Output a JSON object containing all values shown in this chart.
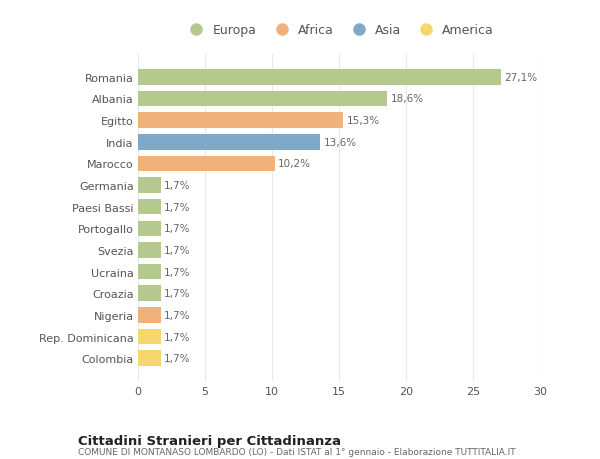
{
  "categories": [
    "Romania",
    "Albania",
    "Egitto",
    "India",
    "Marocco",
    "Germania",
    "Paesi Bassi",
    "Portogallo",
    "Svezia",
    "Ucraina",
    "Croazia",
    "Nigeria",
    "Rep. Dominicana",
    "Colombia"
  ],
  "values": [
    27.1,
    18.6,
    15.3,
    13.6,
    10.2,
    1.7,
    1.7,
    1.7,
    1.7,
    1.7,
    1.7,
    1.7,
    1.7,
    1.7
  ],
  "labels": [
    "27,1%",
    "18,6%",
    "15,3%",
    "13,6%",
    "10,2%",
    "1,7%",
    "1,7%",
    "1,7%",
    "1,7%",
    "1,7%",
    "1,7%",
    "1,7%",
    "1,7%",
    "1,7%"
  ],
  "colors": [
    "#b5c98e",
    "#b5c98e",
    "#f0b27a",
    "#7fa8c9",
    "#f0b27a",
    "#b5c98e",
    "#b5c98e",
    "#b5c98e",
    "#b5c98e",
    "#b5c98e",
    "#b5c98e",
    "#f0b27a",
    "#f5d76e",
    "#f5d76e"
  ],
  "legend_labels": [
    "Europa",
    "Africa",
    "Asia",
    "America"
  ],
  "legend_colors": [
    "#b5c98e",
    "#f0b27a",
    "#7fa8c9",
    "#f5d76e"
  ],
  "title": "Cittadini Stranieri per Cittadinanza",
  "subtitle": "COMUNE DI MONTANASO LOMBARDO (LO) - Dati ISTAT al 1° gennaio - Elaborazione TUTTITALIA.IT",
  "xlim": [
    0,
    30
  ],
  "xticks": [
    0,
    5,
    10,
    15,
    20,
    25,
    30
  ],
  "bg_color": "#ffffff",
  "grid_color": "#e8e8e8"
}
